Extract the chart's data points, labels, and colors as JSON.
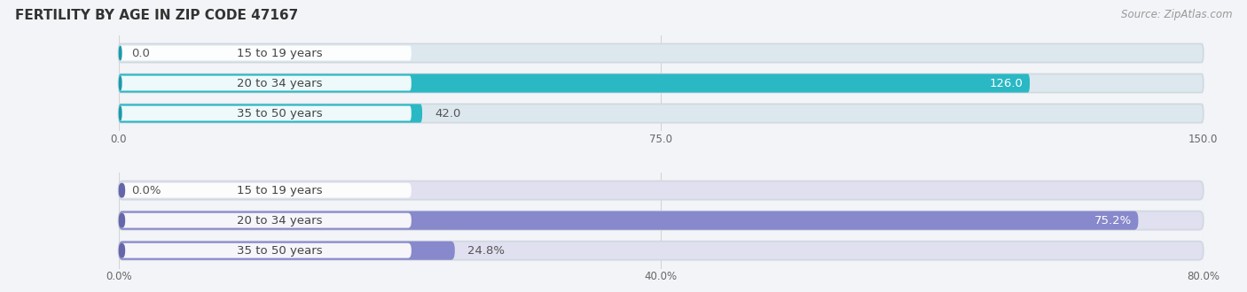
{
  "title": "FERTILITY BY AGE IN ZIP CODE 47167",
  "source": "Source: ZipAtlas.com",
  "top_chart": {
    "categories": [
      "15 to 19 years",
      "20 to 34 years",
      "35 to 50 years"
    ],
    "values": [
      0.0,
      126.0,
      42.0
    ],
    "xlim": [
      0,
      150
    ],
    "xticks": [
      0.0,
      75.0,
      150.0
    ],
    "xtick_labels": [
      "0.0",
      "75.0",
      "150.0"
    ],
    "bar_color": "#2ab8c4",
    "bar_bg_color": "#dde8ee",
    "dot_color": "#1a9aaa"
  },
  "bottom_chart": {
    "categories": [
      "15 to 19 years",
      "20 to 34 years",
      "35 to 50 years"
    ],
    "values": [
      0.0,
      75.2,
      24.8
    ],
    "xlim": [
      0,
      80
    ],
    "xticks": [
      0.0,
      40.0,
      80.0
    ],
    "xtick_labels": [
      "0.0%",
      "40.0%",
      "80.0%"
    ],
    "bar_color": "#8888cc",
    "bar_bg_color": "#e0e0f0",
    "dot_color": "#6666aa"
  },
  "bg_color": "#f2f4f7",
  "pill_color": "#ffffff",
  "pill_alpha": 0.92,
  "label_color": "#444444",
  "value_color_inside": "#ffffff",
  "value_color_outside": "#555555",
  "title_color": "#333333",
  "source_color": "#999999",
  "grid_color": "#cccccc",
  "bar_height": 0.62,
  "label_font_size": 9.5,
  "value_font_size": 9.5,
  "title_font_size": 11,
  "source_font_size": 8.5
}
